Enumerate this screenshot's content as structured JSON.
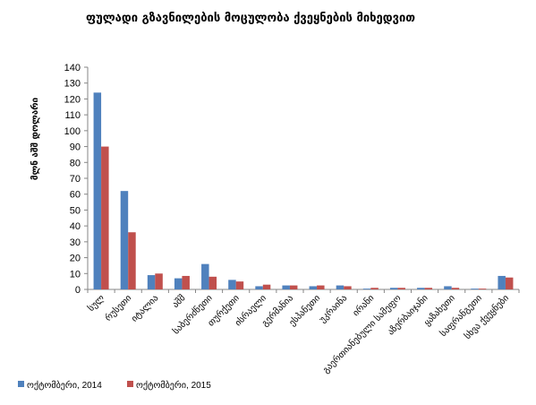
{
  "chart_data": {
    "type": "bar",
    "title": "ფულადი გზავნილების მოცულობა ქვეყნების მიხედვით",
    "ylabel": "მლნ აშშ დოლარი",
    "xlabel": "",
    "ylim": [
      0,
      140
    ],
    "yticks": [
      0,
      10,
      20,
      30,
      40,
      50,
      60,
      70,
      80,
      90,
      100,
      110,
      120,
      130,
      140
    ],
    "grid": false,
    "legend_position": "bottom-left",
    "categories": [
      "სულ",
      "რუსეთი",
      "იტალია",
      "აშშ",
      "საბერძნეთი",
      "თურქეთი",
      "ისრაელი",
      "გერმანია",
      "ესპანეთი",
      "უკრაინა",
      "ირანი",
      "გაერთიანებული სამეფო",
      "აზერბაიჯანი",
      "ყაზახეთი",
      "საფრანგეთი",
      "სხვა ქვეყნები"
    ],
    "series": [
      {
        "name": "ოქტომბერი, 2014",
        "color": "#4F81BD",
        "values": [
          124,
          62,
          9,
          7,
          16,
          6,
          2,
          2.5,
          2,
          2.5,
          0.5,
          1,
          1,
          2,
          0.5,
          8.5
        ]
      },
      {
        "name": "ოქტომბერი, 2015",
        "color": "#C0504D",
        "values": [
          90,
          36,
          10,
          8.5,
          8,
          5,
          3,
          2.5,
          2.5,
          2,
          1,
          1,
          1,
          1,
          0.5,
          7.5
        ]
      }
    ]
  }
}
